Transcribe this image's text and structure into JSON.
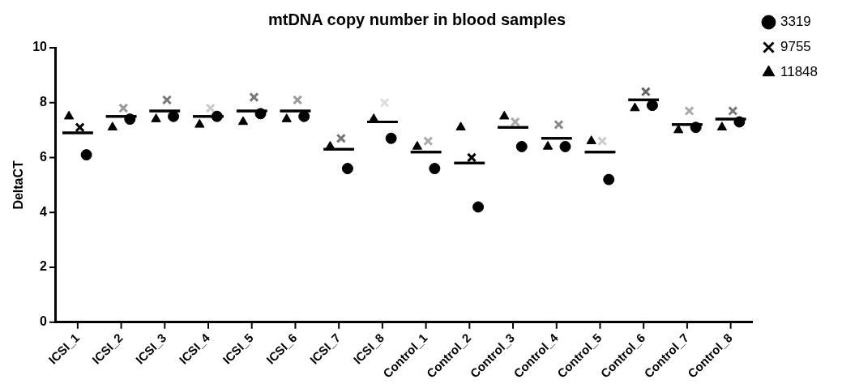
{
  "chart_data": {
    "type": "scatter",
    "title": "mtDNA copy number in blood samples",
    "ylabel": "DeltaCT",
    "categories": [
      "ICSI_1",
      "ICSI_2",
      "ICSI_3",
      "ICSI_4",
      "ICSI_5",
      "ICSI_6",
      "ICSI_7",
      "ICSI_8",
      "Control_1",
      "Control_2",
      "Control_3",
      "Control_4",
      "Control_5",
      "Control_6",
      "Control_7",
      "Control_8"
    ],
    "ylim": [
      0,
      10
    ],
    "yticks": [
      0,
      2,
      4,
      6,
      8,
      10
    ],
    "grid": false,
    "legend": "top right",
    "series": [
      {
        "name": "3319",
        "marker": "circle",
        "color": "#000000",
        "values": [
          6.1,
          7.4,
          7.5,
          7.5,
          7.6,
          7.5,
          5.6,
          6.7,
          5.6,
          4.2,
          6.4,
          6.4,
          5.2,
          7.9,
          7.1,
          7.3
        ]
      },
      {
        "name": "9755",
        "marker": "cross",
        "color": "#000000",
        "colors": [
          "#000000",
          "#999999",
          "#777777",
          "#cccccc",
          "#777777",
          "#999999",
          "#777777",
          "#dddddd",
          "#aaaaaa",
          "#000000",
          "#aaaaaa",
          "#888888",
          "#cccccc",
          "#666666",
          "#aaaaaa",
          "#777777"
        ],
        "values": [
          7.1,
          7.8,
          8.1,
          7.8,
          8.2,
          8.1,
          6.7,
          8.0,
          6.6,
          6.0,
          7.3,
          7.2,
          6.6,
          8.4,
          7.7,
          7.7
        ]
      },
      {
        "name": "11848",
        "marker": "triangle",
        "color": "#000000",
        "values": [
          7.5,
          7.1,
          7.4,
          7.2,
          7.3,
          7.4,
          6.4,
          7.4,
          6.4,
          7.1,
          7.5,
          6.4,
          6.6,
          7.8,
          7.0,
          7.1
        ]
      },
      {
        "type": "box",
        "color": "#000000",
        "boxes": [
          {
            "low": 6.9,
            "q1": 6.9,
            "median": 6.9,
            "q3": 6.9,
            "high": 6.9
          },
          {
            "low": 7.5,
            "q1": 7.5,
            "median": 7.5,
            "q3": 7.5,
            "high": 7.5
          },
          {
            "low": 7.7,
            "q1": 7.7,
            "median": 7.7,
            "q3": 7.7,
            "high": 7.7
          },
          {
            "low": 7.5,
            "q1": 7.5,
            "median": 7.5,
            "q3": 7.5,
            "high": 7.5
          },
          {
            "low": 7.7,
            "q1": 7.7,
            "median": 7.7,
            "q3": 7.7,
            "high": 7.7
          },
          {
            "low": 7.7,
            "q1": 7.7,
            "median": 7.7,
            "q3": 7.7,
            "high": 7.7
          },
          {
            "low": 6.3,
            "q1": 6.3,
            "median": 6.3,
            "q3": 6.3,
            "high": 6.3
          },
          {
            "low": 7.3,
            "q1": 7.3,
            "median": 7.3,
            "q3": 7.3,
            "high": 7.3
          },
          {
            "low": 6.2,
            "q1": 6.2,
            "median": 6.2,
            "q3": 6.2,
            "high": 6.2
          },
          {
            "low": 5.8,
            "q1": 5.8,
            "median": 5.8,
            "q3": 5.8,
            "high": 5.8
          },
          {
            "low": 7.1,
            "q1": 7.1,
            "median": 7.1,
            "q3": 7.1,
            "high": 7.1
          },
          {
            "low": 6.7,
            "q1": 6.7,
            "median": 6.7,
            "q3": 6.7,
            "high": 6.7
          },
          {
            "low": 6.2,
            "q1": 6.2,
            "median": 6.2,
            "q3": 6.2,
            "high": 6.2
          },
          {
            "low": 8.1,
            "q1": 8.1,
            "median": 8.1,
            "q3": 8.1,
            "high": 8.1
          },
          {
            "low": 7.2,
            "q1": 7.2,
            "median": 7.2,
            "q3": 7.2,
            "high": 7.2
          },
          {
            "low": 7.4,
            "q1": 7.4,
            "median": 7.4,
            "q3": 7.4,
            "high": 7.4
          }
        ]
      }
    ]
  }
}
